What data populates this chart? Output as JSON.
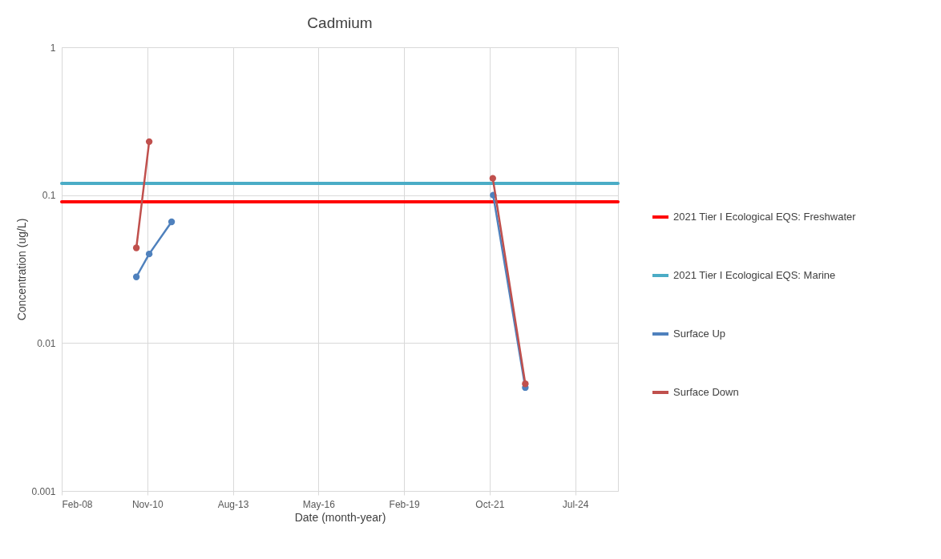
{
  "chart_data": {
    "type": "line",
    "title": "Cadmium",
    "xlabel": "Date (month-year)",
    "ylabel": "Concentration (ug/L)",
    "xlim": [
      "2008-02-20",
      "2025-12-07"
    ],
    "xticks": [
      {
        "value": "2008-02-20",
        "label": "Feb-08"
      },
      {
        "value": "2010-11-16",
        "label": "Nov-10"
      },
      {
        "value": "2013-08-12",
        "label": "Aug-13"
      },
      {
        "value": "2016-05-08",
        "label": "May-16"
      },
      {
        "value": "2019-02-02",
        "label": "Feb-19"
      },
      {
        "value": "2021-10-29",
        "label": "Oct-21"
      },
      {
        "value": "2024-07-25",
        "label": "Jul-24"
      }
    ],
    "ylim": [
      0.001,
      1
    ],
    "yticks": [
      0.001,
      0.01,
      0.1,
      1
    ],
    "log": "y",
    "grid": true,
    "legend": "right",
    "line_style": "solid",
    "series": [
      {
        "name": "2021 Tier I Ecological EQS: Freshwater",
        "color": "#ff0000",
        "marker": "none",
        "x": [
          "2008-02-20",
          "2025-12-07"
        ],
        "values": [
          0.09,
          0.09
        ]
      },
      {
        "name": "2021 Tier I Ecological EQS: Marine",
        "color": "#4bacc6",
        "marker": "none",
        "x": [
          "2008-02-20",
          "2025-12-07"
        ],
        "values": [
          0.12,
          0.12
        ]
      },
      {
        "name": "Surface Up",
        "color": "#4f81bd",
        "marker": "circle",
        "x": [
          "2010-07-11",
          "2010-12-08",
          "2011-08-27",
          "2016-06-01",
          "2021-12-10",
          "2022-12-20"
        ],
        "values": [
          0.028,
          0.04,
          0.066,
          null,
          0.1,
          0.005
        ]
      },
      {
        "name": "Surface Down",
        "color": "#c0504d",
        "marker": "circle",
        "x": [
          "2010-07-11",
          "2010-12-08",
          "2016-06-01",
          "2021-12-05",
          "2022-12-20"
        ],
        "values": [
          0.044,
          0.23,
          null,
          0.13,
          0.0053
        ]
      }
    ]
  }
}
